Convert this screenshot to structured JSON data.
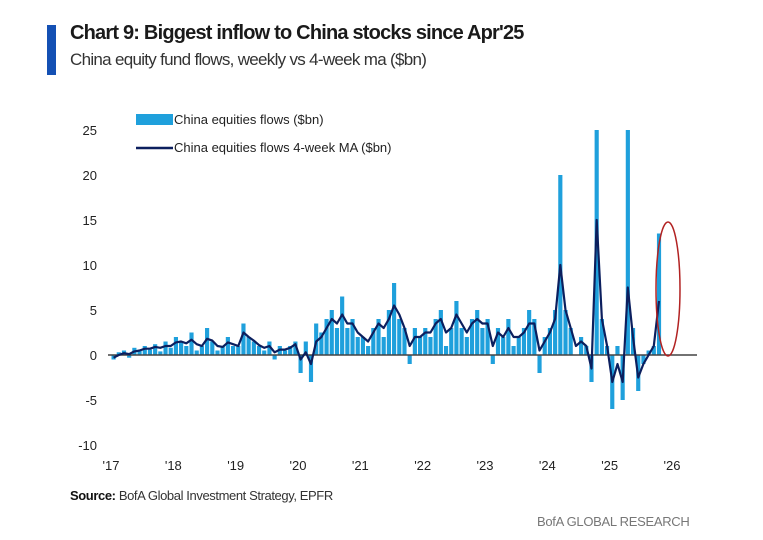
{
  "header": {
    "title": "Chart 9: Biggest inflow to China stocks since Apr'25",
    "subtitle": "China equity fund flows, weekly vs 4-week ma ($bn)"
  },
  "footer": {
    "source_label": "Source:",
    "source_text": "BofA Global Investment Strategy, EPFR",
    "brand": "BofA GLOBAL RESEARCH"
  },
  "chart_data": {
    "type": "bar+line",
    "title": "",
    "xlabel": "",
    "ylabel": "",
    "ylim": [
      -10,
      25
    ],
    "xlim": [
      "2017-01",
      "2026-01"
    ],
    "y_ticks": [
      "25",
      "20",
      "15",
      "10",
      "5",
      "0",
      "-5",
      "-10"
    ],
    "x_ticks": [
      "'17",
      "'18",
      "'19",
      "'20",
      "'21",
      "'22",
      "'23",
      "'24",
      "'25",
      "'26"
    ],
    "grid": false,
    "legend_position": "top-left",
    "colors": {
      "bars": "#1fa0dc",
      "line": "#0c1f5e",
      "highlight": "#b22222"
    },
    "annotation": "red ellipse highlighting latest inflow (Oct 2025)",
    "x_start": "2017-01",
    "x_step": "month",
    "series": [
      {
        "name": "China equities flows ($bn)",
        "kind": "bar",
        "values": [
          -0.5,
          0.3,
          0.5,
          -0.3,
          0.8,
          0.5,
          1,
          0.6,
          1.2,
          0.4,
          1.5,
          0.8,
          2,
          1.5,
          1,
          2.5,
          0.5,
          1,
          3,
          1.5,
          0.5,
          1,
          2,
          1,
          1,
          3.5,
          2,
          1.5,
          1,
          0.5,
          1.5,
          -0.5,
          1,
          0.5,
          1,
          1.5,
          -2,
          1.5,
          -3,
          3.5,
          2.5,
          4,
          5,
          3,
          6.5,
          3,
          4,
          2,
          2,
          1,
          3,
          4,
          2,
          5,
          8,
          4,
          3,
          -1,
          3,
          2,
          3,
          2,
          4,
          5,
          1,
          3,
          6,
          3,
          2,
          4,
          5,
          3,
          4,
          -1,
          3,
          2,
          4,
          1,
          2,
          3,
          5,
          4,
          -2,
          2,
          3,
          5,
          20,
          5,
          3,
          0,
          2,
          1,
          -3,
          25,
          4,
          1,
          -6,
          1,
          -5,
          25,
          3,
          -4,
          -1,
          0.5,
          1,
          13.5
        ]
      },
      {
        "name": "China equities flows 4-week MA ($bn)",
        "kind": "line",
        "values": [
          -0.3,
          0,
          0.2,
          0.1,
          0.4,
          0.5,
          0.7,
          0.7,
          0.9,
          0.8,
          1,
          1,
          1.4,
          1.5,
          1.3,
          1.7,
          1.2,
          1,
          1.8,
          1.6,
          1,
          0.9,
          1.4,
          1.2,
          1,
          2.5,
          2,
          1.6,
          1.1,
          0.8,
          1,
          0.3,
          0.6,
          0.6,
          0.8,
          1.2,
          -0.5,
          0.3,
          -1,
          1.5,
          2,
          3,
          4,
          3.5,
          4.5,
          3.5,
          3.5,
          2.5,
          2,
          1.5,
          2.5,
          3.5,
          3,
          4,
          5.5,
          4.5,
          3,
          1,
          2,
          2,
          2.5,
          2.5,
          3.5,
          4,
          2.5,
          3,
          4.5,
          3.5,
          2.5,
          3.5,
          4,
          3.5,
          3.5,
          1,
          2.5,
          2,
          3,
          2,
          2,
          2.5,
          3.5,
          3.5,
          0.5,
          1.5,
          2.5,
          4,
          10,
          5,
          3,
          1,
          1.5,
          1,
          -1.5,
          15,
          4,
          1,
          -3,
          -1,
          -3,
          7.5,
          2,
          -2.5,
          -1,
          0,
          1,
          6
        ]
      }
    ]
  }
}
